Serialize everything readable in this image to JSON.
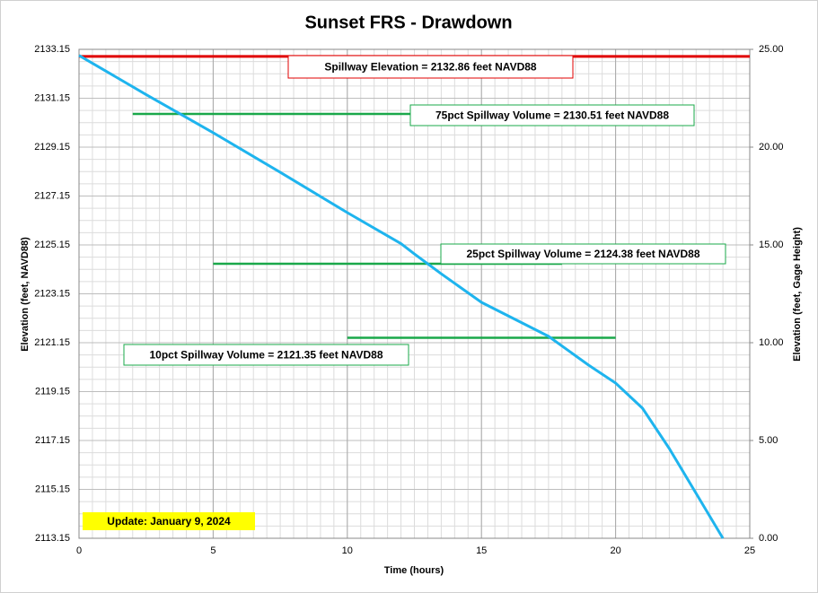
{
  "chart_data": {
    "type": "line",
    "title": "Sunset FRS - Drawdown",
    "xlabel": "Time (hours)",
    "ylabel": "Elevation (feet, NAVD88)",
    "y2label": "Elevation (feet, Gage Height)",
    "xlim": [
      0,
      25
    ],
    "xticks": [
      0,
      5,
      10,
      15,
      20,
      25
    ],
    "ylim": [
      2113.15,
      2133.15
    ],
    "yticks": [
      2113.15,
      2115.15,
      2117.15,
      2119.15,
      2121.15,
      2123.15,
      2125.15,
      2127.15,
      2129.15,
      2131.15,
      2133.15
    ],
    "y2lim": [
      0,
      25
    ],
    "y2ticks": [
      {
        "value": 0,
        "label": "0.00"
      },
      {
        "value": 5,
        "label": "5.00"
      },
      {
        "value": 10,
        "label": "10.00"
      },
      {
        "value": 15,
        "label": "15.00"
      },
      {
        "value": 20,
        "label": "20.00"
      },
      {
        "value": 25,
        "label": "25.00"
      }
    ],
    "grid": true,
    "series": [
      {
        "color": "#1eb4ee",
        "x": [
          0,
          2.5,
          5,
          7.5,
          10,
          12,
          12.5,
          13.5,
          15,
          17.5,
          19,
          20,
          21,
          22,
          23,
          24
        ],
        "values": [
          2132.9,
          2131.3,
          2129.74,
          2128.12,
          2126.47,
          2125.2,
          2124.78,
          2123.97,
          2122.8,
          2121.41,
          2120.23,
          2119.5,
          2118.47,
          2116.82,
          2114.99,
          2113.15
        ]
      }
    ],
    "reference_lines": [
      {
        "value": 2132.86,
        "x": [
          0,
          25
        ],
        "color": "#e00000",
        "label": "Spillway Elevation = 2132.86 feet NAVD88"
      },
      {
        "value": 2130.51,
        "x": [
          2,
          12.5
        ],
        "color": "#1aa84a",
        "label": "75pct Spillway Volume = 2130.51 feet NAVD88"
      },
      {
        "value": 2124.38,
        "x": [
          5,
          18
        ],
        "color": "#1aa84a",
        "label": "25pct Spillway Volume = 2124.38 feet NAVD88"
      },
      {
        "value": 2121.35,
        "x": [
          10,
          20
        ],
        "color": "#1aa84a",
        "label": "10pct Spillway Volume = 2121.35 feet NAVD88"
      }
    ],
    "note": "Update: January 9, 2024"
  }
}
